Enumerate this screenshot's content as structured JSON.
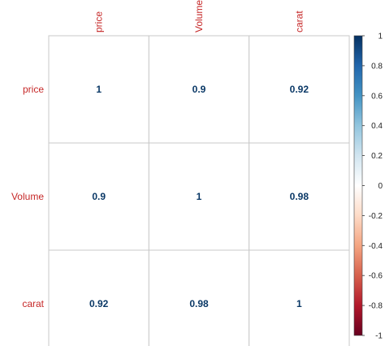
{
  "chart_data": {
    "type": "heatmap",
    "variables": [
      "price",
      "Volume",
      "carat"
    ],
    "matrix": [
      [
        1,
        0.9,
        0.92
      ],
      [
        0.9,
        1,
        0.98
      ],
      [
        0.92,
        0.98,
        1
      ]
    ],
    "cell_labels": [
      [
        "1",
        "0.9",
        "0.92"
      ],
      [
        "0.9",
        "1",
        "0.98"
      ],
      [
        "0.92",
        "0.98",
        "1"
      ]
    ],
    "colorbar": {
      "range": [
        -1,
        1
      ],
      "ticks": [
        "1",
        "0.8",
        "0.6",
        "0.4",
        "0.2",
        "0",
        "-0.2",
        "-0.4",
        "-0.6",
        "-0.8",
        "-1"
      ],
      "tick_values": [
        1,
        0.8,
        0.6,
        0.4,
        0.2,
        0,
        -0.2,
        -0.4,
        -0.6,
        -0.8,
        -1
      ],
      "stops": [
        "#67001F",
        "#B2182B",
        "#D6604D",
        "#F4A582",
        "#FDDBC7",
        "#FFFFFF",
        "#D1E5F0",
        "#92C5DE",
        "#4393C3",
        "#2166AC",
        "#053061"
      ]
    },
    "colors": {
      "label_text": "#C62828",
      "value_text": "#0A3866",
      "grid": "#C8C8C8"
    },
    "grid": true,
    "legend_placement": "right"
  }
}
